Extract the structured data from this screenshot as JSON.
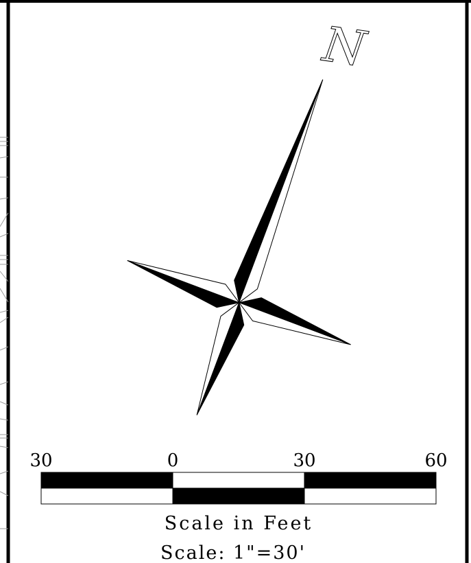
{
  "north_arrow": {
    "label": "N"
  },
  "scale_bar": {
    "tick_labels": [
      "30",
      "0",
      "30",
      "60"
    ],
    "title": "Scale in Feet",
    "ratio": "Scale: 1\"=30'"
  },
  "colors": {
    "ink": "#000000",
    "paper": "#ffffff",
    "background_linework": "#9a9a9a"
  }
}
